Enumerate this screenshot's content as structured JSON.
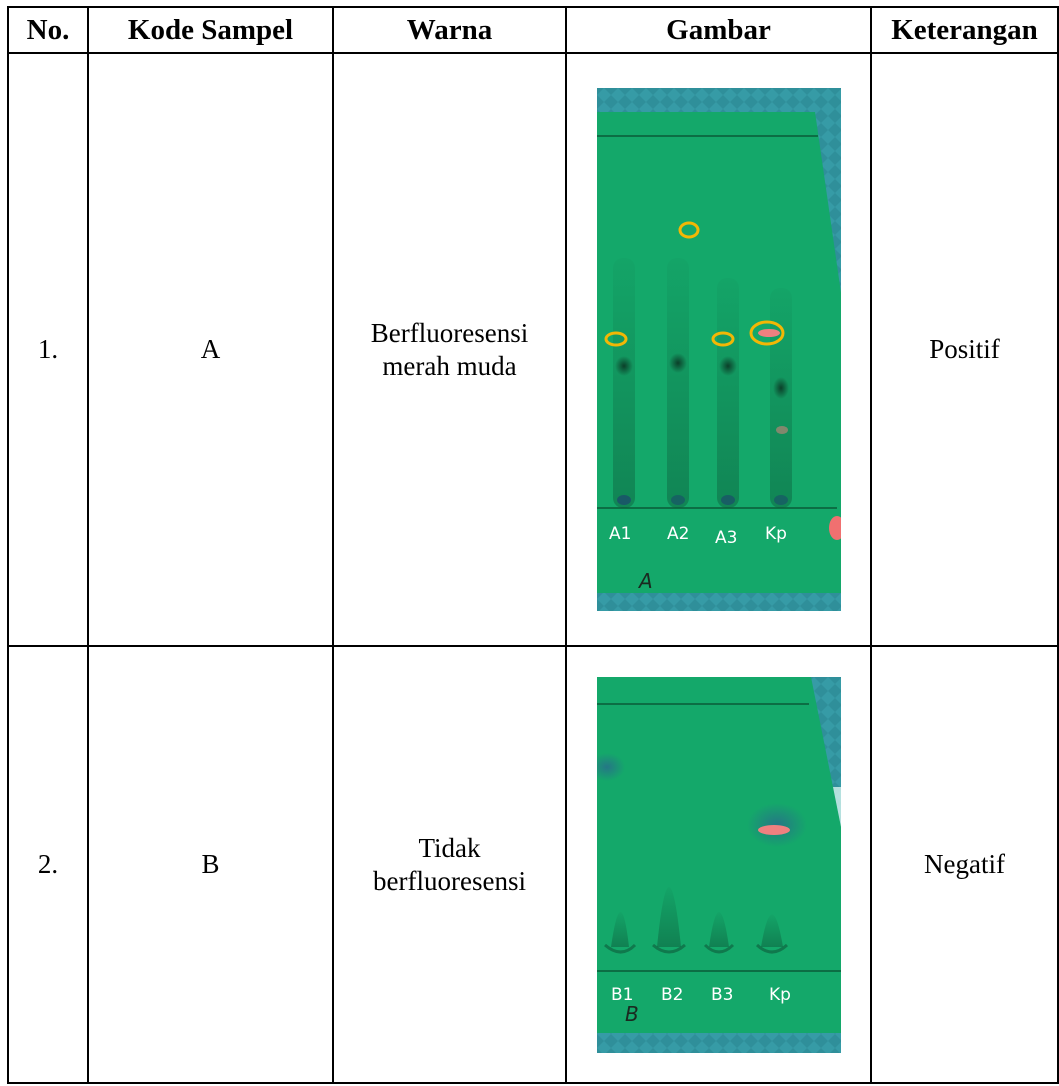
{
  "table": {
    "headers": [
      "No.",
      "Kode Sampel",
      "Warna",
      "Gambar",
      "Keterangan"
    ],
    "rows": [
      {
        "no": "1.",
        "kode": "A",
        "warna": "Berfluoresensi merah muda",
        "keterangan": "Positif",
        "plate": {
          "lanes": [
            "A1",
            "A2",
            "A3",
            "Kp"
          ],
          "hand_mark": "A",
          "plate_color": "#14a86a",
          "circle_color": "#f2b705",
          "spot_color": "#f08080"
        }
      },
      {
        "no": "2.",
        "kode": "B",
        "warna": "Tidak berfluoresensi",
        "keterangan": "Negatif",
        "plate": {
          "lanes": [
            "B1",
            "B2",
            "B3",
            "Kp"
          ],
          "hand_mark": "B",
          "plate_color": "#14a86a",
          "spot_color": "#f08080"
        }
      }
    ]
  }
}
